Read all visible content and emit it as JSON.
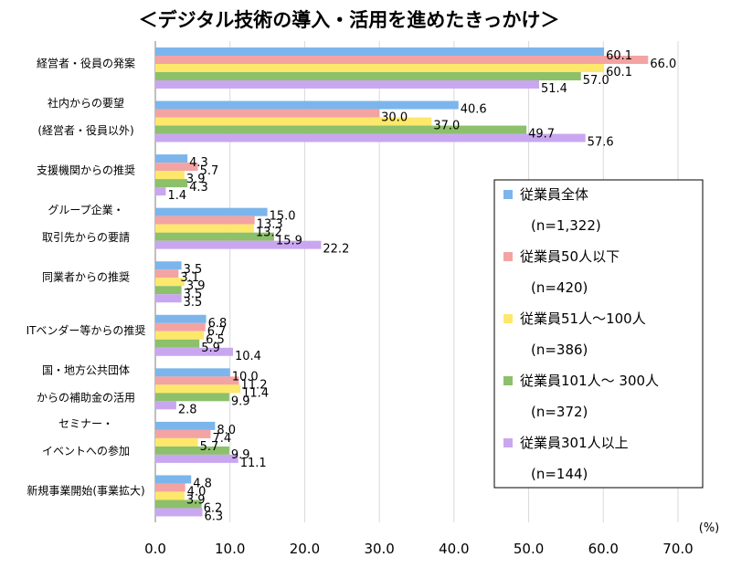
{
  "chart_data": {
    "type": "bar",
    "orientation": "horizontal",
    "title": "＜デジタル技術の導入・活用を進めたきっかけ＞",
    "unit": "(%)",
    "xlim": [
      0,
      70
    ],
    "xticks": [
      "0.0",
      "10.0",
      "20.0",
      "30.0",
      "40.0",
      "50.0",
      "60.0",
      "70.0"
    ],
    "categories": [
      [
        "経営者・役員の発案"
      ],
      [
        "社内からの要望",
        "(経営者・役員以外)"
      ],
      [
        "支援機関からの推奨"
      ],
      [
        "グループ企業・",
        "取引先からの要請"
      ],
      [
        "同業者からの推奨"
      ],
      [
        "ITベンダー等からの推奨"
      ],
      [
        "国・地方公共団体",
        "からの補助金の活用"
      ],
      [
        "セミナー・",
        "イベントへの参加"
      ],
      [
        "新規事業開始(事業拡大)"
      ]
    ],
    "series": [
      {
        "name": "従業員全体",
        "note": "(n=1,322)",
        "color": "#7cb5ec",
        "values": [
          60.1,
          40.6,
          4.3,
          15.0,
          3.5,
          6.8,
          10.0,
          8.0,
          4.8
        ]
      },
      {
        "name": "従業員50人以下",
        "note": "(n=420)",
        "color": "#f4a3a3",
        "values": [
          66.0,
          30.0,
          5.7,
          13.3,
          3.1,
          6.7,
          11.2,
          7.4,
          4.0
        ]
      },
      {
        "name": "従業員51人～100人",
        "note": "(n=386)",
        "color": "#fde86b",
        "values": [
          60.1,
          37.0,
          3.9,
          13.2,
          3.9,
          6.5,
          11.4,
          5.7,
          3.9
        ]
      },
      {
        "name": "従業員101人～ 300人",
        "note": "(n=372)",
        "color": "#8cc06a",
        "values": [
          57.0,
          49.7,
          4.3,
          15.9,
          3.5,
          5.9,
          9.9,
          9.9,
          6.2
        ]
      },
      {
        "name": "従業員301人以上",
        "note": "(n=144)",
        "color": "#c9a7f0",
        "values": [
          51.4,
          57.6,
          1.4,
          22.2,
          3.5,
          10.4,
          2.8,
          11.1,
          6.3
        ]
      }
    ],
    "grid": true,
    "legend_position": "right"
  }
}
